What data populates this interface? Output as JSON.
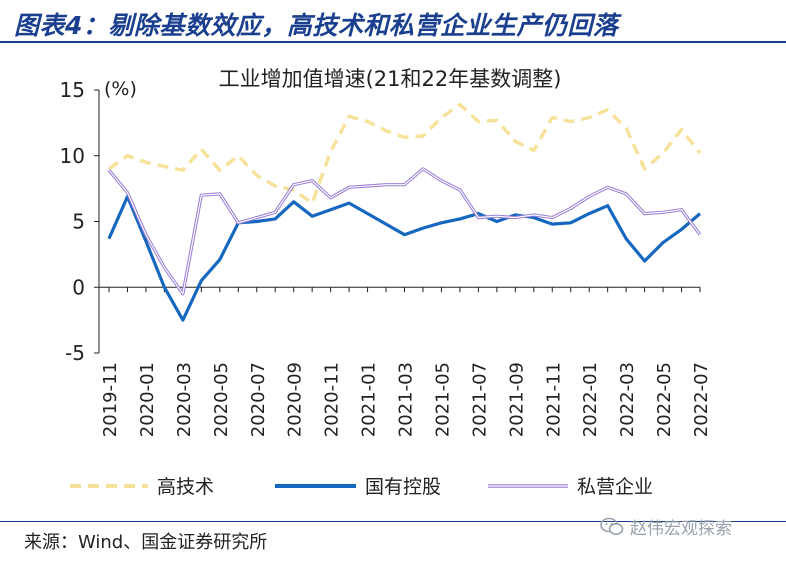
{
  "page": {
    "figure_title": "图表4：剔除基数效应，高技术和私营企业生产仍回落",
    "source": "来源：Wind、国金证券研究所",
    "watermark": "赵伟宏观探索"
  },
  "chart_data": {
    "type": "line",
    "title": "工业增加值增速(21和22年基数调整)",
    "ylabel": "(%)",
    "ylim": [
      -5,
      15
    ],
    "yticks": [
      15,
      10,
      5,
      0,
      -5
    ],
    "x": [
      "2019-11",
      "2019-12",
      "2020-01",
      "2020-02",
      "2020-03",
      "2020-04",
      "2020-05",
      "2020-06",
      "2020-07",
      "2020-08",
      "2020-09",
      "2020-10",
      "2020-11",
      "2020-12",
      "2021-01",
      "2021-02",
      "2021-03",
      "2021-04",
      "2021-05",
      "2021-06",
      "2021-07",
      "2021-08",
      "2021-09",
      "2021-10",
      "2021-11",
      "2021-12",
      "2022-01",
      "2022-02",
      "2022-03",
      "2022-04",
      "2022-05",
      "2022-06",
      "2022-07"
    ],
    "xtick_labels": [
      "2019-11",
      "2020-01",
      "2020-03",
      "2020-05",
      "2020-07",
      "2020-09",
      "2020-11",
      "2021-01",
      "2021-03",
      "2021-05",
      "2021-07",
      "2021-09",
      "2021-11",
      "2022-01",
      "2022-03",
      "2022-05",
      "2022-07"
    ],
    "grid": false,
    "legend_position": "bottom",
    "series": [
      {
        "name": "高技术",
        "color": "#f6e29b",
        "style": "dashed",
        "values": [
          9.0,
          10.0,
          9.5,
          9.2,
          8.9,
          10.5,
          8.9,
          10.0,
          8.5,
          7.7,
          7.4,
          6.4,
          10.3,
          13.0,
          12.6,
          11.9,
          11.4,
          11.5,
          12.9,
          13.9,
          12.6,
          12.7,
          11.1,
          10.4,
          12.9,
          12.6,
          12.9,
          13.5,
          12.1,
          9.0,
          10.2,
          12.0,
          10.2
        ]
      },
      {
        "name": "国有控股",
        "color": "#1667c0",
        "style": "solid",
        "values": [
          3.7,
          6.9,
          3.5,
          0.0,
          -2.5,
          0.5,
          2.1,
          4.9,
          5.0,
          5.2,
          6.5,
          5.4,
          5.9,
          6.4,
          5.6,
          4.8,
          4.0,
          4.5,
          4.9,
          5.2,
          5.6,
          5.0,
          5.5,
          5.3,
          4.8,
          4.9,
          5.6,
          6.2,
          3.7,
          2.0,
          3.4,
          4.4,
          5.6
        ]
      },
      {
        "name": "私营企业",
        "color": "#9b7fd6",
        "style": "double",
        "values": [
          8.9,
          7.2,
          4.0,
          1.5,
          -0.5,
          7.0,
          7.1,
          4.9,
          5.3,
          5.7,
          7.8,
          8.1,
          6.8,
          7.6,
          7.7,
          7.8,
          7.8,
          9.0,
          8.1,
          7.4,
          5.3,
          5.4,
          5.3,
          5.5,
          5.3,
          6.0,
          6.9,
          7.6,
          7.1,
          5.6,
          5.7,
          5.9,
          4.0
        ]
      }
    ]
  }
}
